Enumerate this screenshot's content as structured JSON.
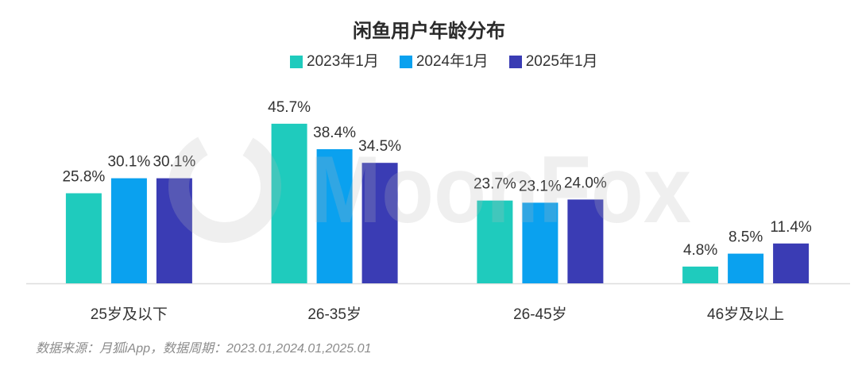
{
  "chart_data": {
    "type": "bar",
    "title": "闲鱼用户年龄分布",
    "categories": [
      "25岁及以下",
      "26-35岁",
      "26-45岁",
      "46岁及以上"
    ],
    "series": [
      {
        "name": "2023年1月",
        "color": "#1FCBBD",
        "values": [
          25.8,
          45.7,
          23.7,
          4.8
        ]
      },
      {
        "name": "2024年1月",
        "color": "#0AA1EF",
        "values": [
          30.1,
          38.4,
          23.1,
          8.5
        ]
      },
      {
        "name": "2025年1月",
        "color": "#3A3CB4",
        "values": [
          30.1,
          34.5,
          24.0,
          11.4
        ]
      }
    ],
    "value_unit": "%",
    "xlabel": "",
    "ylabel": "",
    "ylim": [
      0,
      50
    ],
    "grid": false,
    "legend_position": "top"
  },
  "source_note": "数据来源：月狐iApp，数据周期：2023.01,2024.01,2025.01",
  "watermark": "MoonFox",
  "colors": {
    "text": "#333333",
    "axis": "#DDDDDD",
    "footnote": "#8C8C8C",
    "watermark": "#BBBBBB"
  }
}
